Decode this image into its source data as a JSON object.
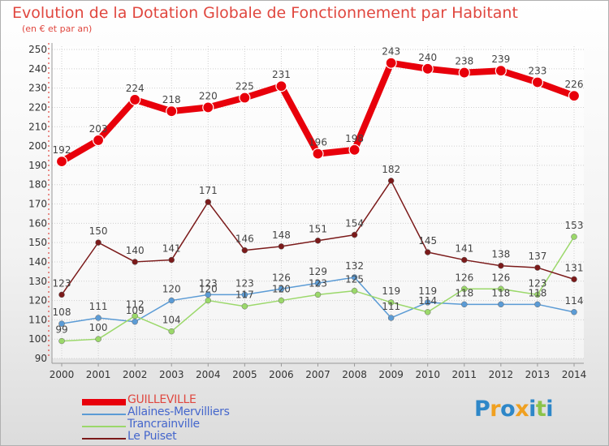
{
  "title": "Evolution de la Dotation Globale de Fonctionnement par Habitant",
  "subtitle": "(en € et par an)",
  "logo": {
    "letters": [
      "P",
      "r",
      "o",
      "x",
      "i",
      "t",
      "i"
    ],
    "colors": [
      "#2e87c8",
      "#f0a020",
      "#2e87c8",
      "#f0a020",
      "#2e87c8",
      "#8bc34a",
      "#2e87c8"
    ]
  },
  "chart_data": {
    "type": "line",
    "title": "Evolution de la Dotation Globale de Fonctionnement par Habitant",
    "subtitle": "(en € et par an)",
    "x": [
      "2000",
      "2001",
      "2002",
      "2003",
      "2004",
      "2005",
      "2006",
      "2007",
      "2008",
      "2009",
      "2010",
      "2011",
      "2012",
      "2013",
      "2014"
    ],
    "ylim": [
      90,
      250
    ],
    "yticks": [
      90,
      100,
      110,
      120,
      130,
      140,
      150,
      160,
      170,
      180,
      190,
      200,
      210,
      220,
      230,
      240,
      250
    ],
    "grid": true,
    "legend_position": "bottom-left",
    "series": [
      {
        "name": "GUILLEVILLE",
        "color": "#e8000b",
        "style": "thick",
        "values": [
          192,
          203,
          224,
          218,
          220,
          225,
          231,
          196,
          198,
          243,
          240,
          238,
          239,
          233,
          226
        ]
      },
      {
        "name": "Allaines-Mervilliers",
        "color": "#5b9bd5",
        "style": "thin",
        "values": [
          108,
          111,
          109,
          120,
          123,
          123,
          126,
          129,
          132,
          111,
          119,
          118,
          118,
          118,
          114
        ]
      },
      {
        "name": "Trancrainville",
        "color": "#9bd86a",
        "style": "thin",
        "values": [
          99,
          100,
          112,
          104,
          120,
          117,
          120,
          123,
          125,
          119,
          114,
          126,
          126,
          123,
          153
        ]
      },
      {
        "name": "Le Puiset",
        "color": "#7b1a1a",
        "style": "thin",
        "values": [
          123,
          150,
          140,
          141,
          171,
          146,
          148,
          151,
          154,
          182,
          145,
          141,
          138,
          137,
          131
        ]
      }
    ]
  }
}
